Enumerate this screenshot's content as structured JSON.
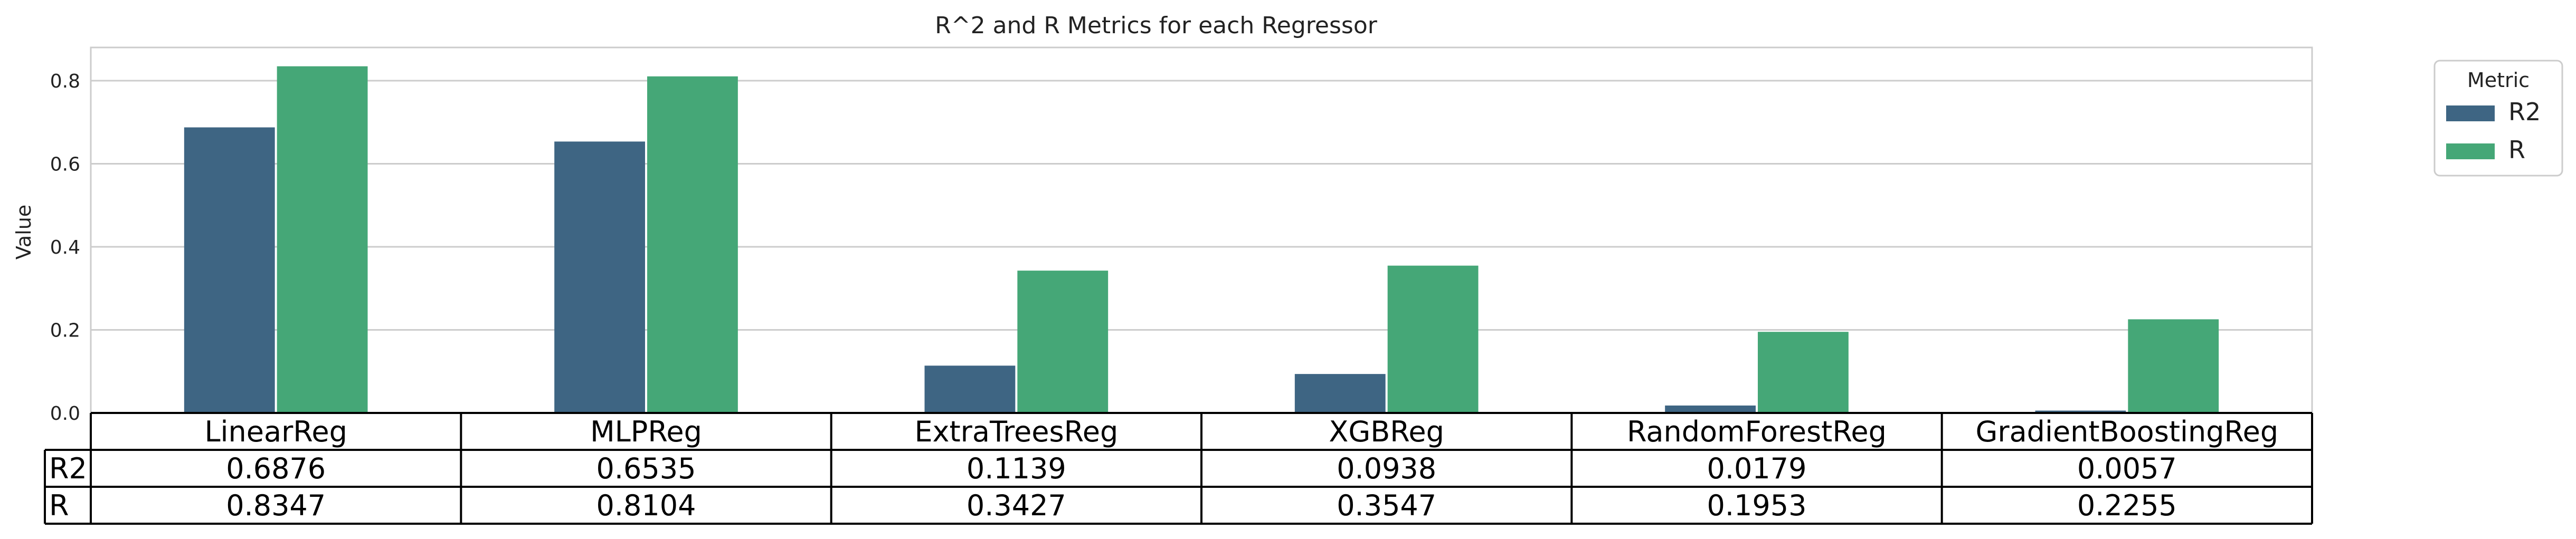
{
  "chart_data": {
    "type": "bar",
    "title": "R^2 and R Metrics for each Regressor",
    "xlabel": "",
    "ylabel": "Value",
    "ylim": [
      0,
      0.88
    ],
    "yticks": [
      0.0,
      0.2,
      0.4,
      0.6,
      0.8
    ],
    "ytick_labels": [
      "0.0",
      "0.2",
      "0.4",
      "0.6",
      "0.8"
    ],
    "grid": "horizontal",
    "categories": [
      "LinearReg",
      "MLPReg",
      "ExtraTreesReg",
      "XGBReg",
      "RandomForestReg",
      "GradientBoostingReg"
    ],
    "series": [
      {
        "name": "R2",
        "color": "#3e6583",
        "values": [
          0.6876,
          0.6535,
          0.1139,
          0.0938,
          0.0179,
          0.0057
        ]
      },
      {
        "name": "R",
        "color": "#45a777",
        "values": [
          0.8347,
          0.8104,
          0.3427,
          0.3547,
          0.1953,
          0.2255
        ]
      }
    ],
    "legend": {
      "title": "Metric",
      "placement": "outside-top-right"
    },
    "table": {
      "col_labels": [
        "LinearReg",
        "MLPReg",
        "ExtraTreesReg",
        "XGBReg",
        "RandomForestReg",
        "GradientBoostingReg"
      ],
      "rows": [
        {
          "label": "R2",
          "cells": [
            "0.6876",
            "0.6535",
            "0.1139",
            "0.0938",
            "0.0179",
            "0.0057"
          ]
        },
        {
          "label": "R",
          "cells": [
            "0.8347",
            "0.8104",
            "0.3427",
            "0.3547",
            "0.1953",
            "0.2255"
          ]
        }
      ]
    }
  }
}
